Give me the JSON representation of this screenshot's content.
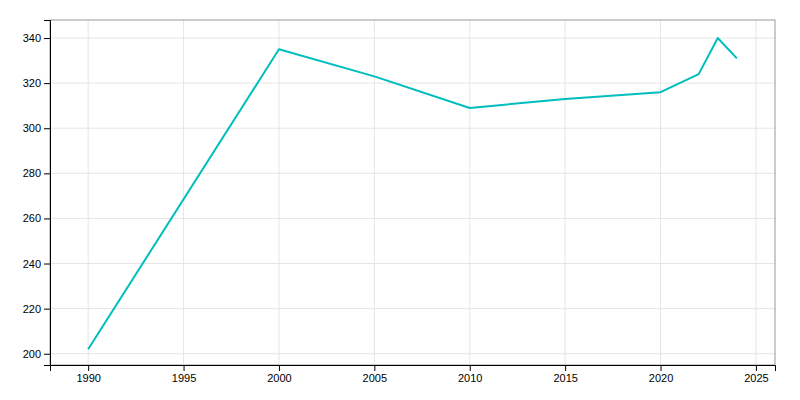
{
  "chart_data": {
    "type": "line",
    "x": [
      1990,
      2000,
      2005,
      2010,
      2015,
      2020,
      2022,
      2023,
      2024
    ],
    "values": [
      202,
      335,
      323,
      309,
      313,
      316,
      324,
      340,
      331
    ],
    "color": "#00BEBE",
    "xlim": [
      1988,
      2026
    ],
    "ylim": [
      195,
      348
    ],
    "xticks": [
      1990,
      1995,
      2000,
      2005,
      2010,
      2015,
      2020,
      2025
    ],
    "yticks": [
      200,
      220,
      240,
      260,
      280,
      300,
      320,
      340
    ],
    "grid": true
  }
}
